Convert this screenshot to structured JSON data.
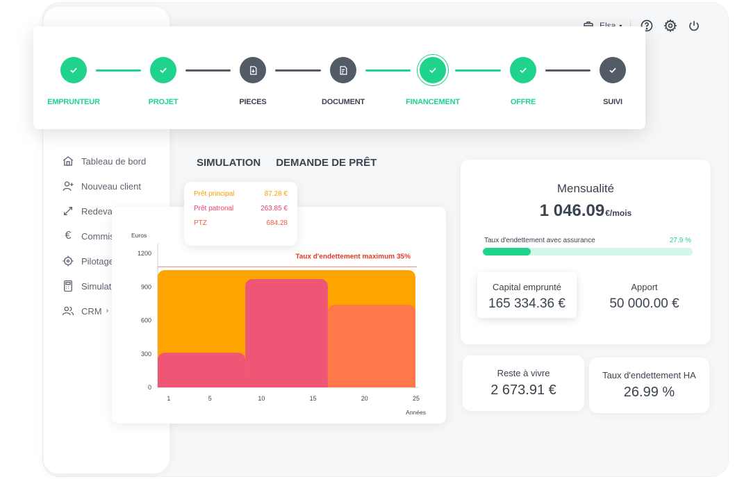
{
  "header": {
    "user_name": "Elsa",
    "icons": [
      "briefcase-icon",
      "help-icon",
      "gear-icon",
      "power-icon"
    ]
  },
  "stepper": {
    "steps": [
      {
        "label": "EMPRUNTEUR",
        "status": "done",
        "icon": "check-icon"
      },
      {
        "label": "PROJET",
        "status": "done",
        "icon": "check-icon"
      },
      {
        "label": "PIECES",
        "status": "todo",
        "icon": "file-download-icon"
      },
      {
        "label": "DOCUMENT",
        "status": "todo",
        "icon": "document-edit-icon"
      },
      {
        "label": "FINANCEMENT",
        "status": "active",
        "icon": "check-icon"
      },
      {
        "label": "OFFRE",
        "status": "done",
        "icon": "check-icon"
      },
      {
        "label": "SUIVI",
        "status": "todo",
        "icon": "check-icon"
      }
    ],
    "colors": {
      "done": "#1fd38c",
      "todo": "#525b66"
    }
  },
  "sidebar": {
    "items": [
      {
        "label": "Tableau de bord",
        "icon": "home-icon"
      },
      {
        "label": "Nouveau client",
        "icon": "user-plus-icon"
      },
      {
        "label": "Redevances",
        "icon": "arrows-expand-icon"
      },
      {
        "label": "Commissions",
        "icon": "euro-icon"
      },
      {
        "label": "Pilotage",
        "icon": "target-icon"
      },
      {
        "label": "Simulateur",
        "icon": "calculator-icon"
      },
      {
        "label": "CRM",
        "icon": "users-icon"
      }
    ]
  },
  "tabs": [
    "SIMULATION",
    "DEMANDE DE PRÊT"
  ],
  "legend": [
    {
      "label": "Prêt principal",
      "value": "87.28 €",
      "color": "#f5a000"
    },
    {
      "label": "Prêt patronal",
      "value": "263.85 €",
      "color": "#e8446a"
    },
    {
      "label": "PTZ",
      "value": "684.28",
      "color": "#ef5a3c"
    }
  ],
  "summary": {
    "mensualite_title": "Mensualité",
    "mensualite_value": "1 046.09",
    "mensualite_unit": "€/mois",
    "debt_label": "Taux d'endettement avec assurance",
    "debt_percent_text": "27.9 %",
    "debt_fill_fraction": 0.23,
    "capital_title": "Capital emprunté",
    "capital_value": "165 334.36 €",
    "apport_title": "Apport",
    "apport_value": "50 000.00 €"
  },
  "reste": {
    "title": "Reste à vivre",
    "value": "2 673.91 €"
  },
  "taux_ha": {
    "title": "Taux d'endettement HA",
    "value": "26.99 %"
  },
  "chart_data": {
    "type": "area",
    "ylabel": "Euros",
    "xlabel": "Années",
    "ylim": [
      0,
      1200
    ],
    "xlim": [
      0,
      25
    ],
    "yticks": [
      0,
      300,
      600,
      900,
      1200
    ],
    "xticks": [
      1,
      5,
      10,
      15,
      20,
      25
    ],
    "threshold": {
      "label": "Taux d'endettement maximum 35%",
      "value": 1080,
      "color": "#ef8f7a"
    },
    "series": [
      {
        "name": "Prêt principal",
        "color": "#ffa500",
        "segments": [
          {
            "x0": 0,
            "x1": 25,
            "y": 1050
          }
        ]
      },
      {
        "name": "PTZ",
        "color": "#ff7849",
        "segments": [
          {
            "x0": 16.5,
            "x1": 25,
            "y": 740
          }
        ]
      },
      {
        "name": "Prêt patronal",
        "color": "#ef5675",
        "segments": [
          {
            "x0": 0,
            "x1": 8.5,
            "y": 310
          },
          {
            "x0": 8.5,
            "x1": 16.5,
            "y": 970
          }
        ]
      }
    ]
  }
}
